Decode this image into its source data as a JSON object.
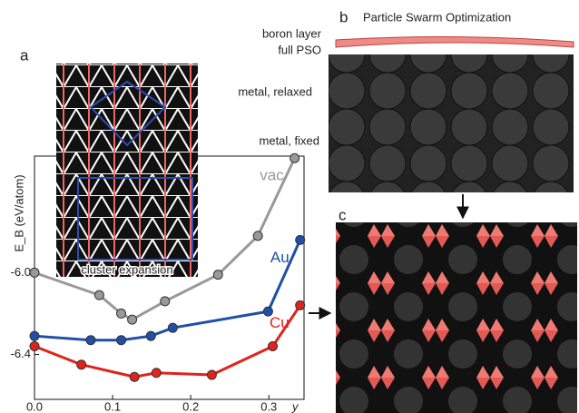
{
  "chart_data": {
    "type": "line",
    "ylabel": "E_B (eV/atom)",
    "xlabel": "y",
    "panel_a": "a",
    "panel_b": "b",
    "panel_c": "c",
    "inset_label": "cluster expansion",
    "pso_title": "Particle Swarm Optimization",
    "layer_labels": [
      "boron layer",
      "full PSO",
      "metal, relaxed",
      "metal, fixed"
    ],
    "xlim": [
      0,
      0.345
    ],
    "ylim": [
      -6.62,
      -5.43
    ],
    "xticks": [
      {
        "value": 0,
        "label": "0.0"
      },
      0.1,
      0.2,
      0.3
    ],
    "yticks": [
      {
        "value": -6,
        "label": "-6.0"
      },
      -6.4
    ],
    "series": [
      {
        "name": "vac",
        "color": "#999999",
        "x": [
          0,
          0.083,
          0.111,
          0.125,
          0.167,
          0.235,
          0.286,
          0.333
        ],
        "values": [
          -6.0,
          -6.11,
          -6.2,
          -6.23,
          -6.14,
          -6.01,
          -5.82,
          -5.44
        ]
      },
      {
        "name": "Au",
        "color": "#1f4fa8",
        "x": [
          0,
          0.072,
          0.111,
          0.149,
          0.177,
          0.299,
          0.34
        ],
        "values": [
          -6.31,
          -6.33,
          -6.33,
          -6.31,
          -6.27,
          -6.19,
          -5.84
        ]
      },
      {
        "name": "Cu",
        "color": "#e0231b",
        "x": [
          0,
          0.06,
          0.128,
          0.156,
          0.227,
          0.305,
          0.34
        ],
        "values": [
          -6.36,
          -6.45,
          -6.51,
          -6.49,
          -6.5,
          -6.36,
          -6.16
        ]
      }
    ]
  }
}
